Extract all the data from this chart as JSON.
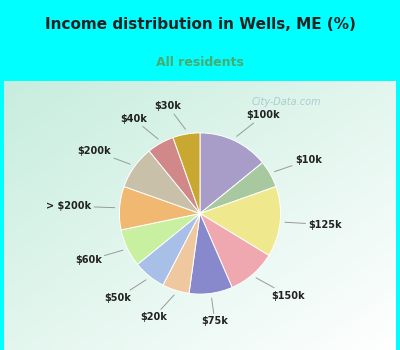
{
  "title": "Income distribution in Wells, ME (%)",
  "subtitle": "All residents",
  "bg_color": "#00FFFF",
  "chart_bg_top_left": "#c8ede0",
  "chart_bg_bottom_right": "#ffffff",
  "watermark": "City-Data.com",
  "labels": [
    "$100k",
    "$10k",
    "$125k",
    "$150k",
    "$75k",
    "$20k",
    "$50k",
    "$60k",
    "> $200k",
    "$200k",
    "$40k",
    "$30k"
  ],
  "sizes": [
    13,
    5,
    13,
    9,
    8,
    5,
    6,
    7,
    8,
    8,
    5,
    5
  ],
  "colors": [
    "#A89CC8",
    "#A8C8A0",
    "#F0E88C",
    "#F0A8B0",
    "#8888CC",
    "#F0C8A0",
    "#A8C0E8",
    "#C8F0A0",
    "#F0B870",
    "#C8C0A8",
    "#D08888",
    "#C8A830"
  ],
  "title_fontsize": 11,
  "subtitle_fontsize": 9,
  "subtitle_color": "#4AAA70",
  "label_fontsize": 7,
  "title_color": "#222222"
}
